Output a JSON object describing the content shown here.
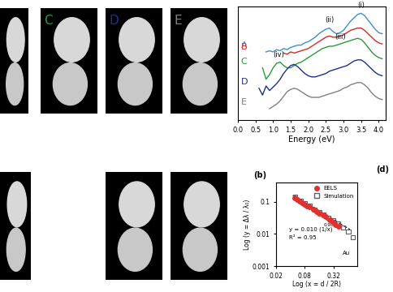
{
  "chart_data": [
    {
      "type": "line",
      "xlabel": "Energy (eV)",
      "x": [
        0.6,
        0.7,
        0.8,
        0.9,
        1.0,
        1.1,
        1.2,
        1.3,
        1.4,
        1.5,
        1.6,
        1.7,
        1.8,
        1.9,
        2.0,
        2.1,
        2.2,
        2.3,
        2.4,
        2.5,
        2.6,
        2.7,
        2.8,
        2.9,
        3.0,
        3.1,
        3.2,
        3.3,
        3.4,
        3.5,
        3.6,
        3.7,
        3.8,
        3.9,
        4.0,
        4.1
      ],
      "series": [
        {
          "name": "A",
          "color": "#3a8fd0",
          "values": [
            null,
            null,
            6.0,
            6.1,
            6.0,
            6.2,
            6.1,
            6.3,
            6.2,
            6.4,
            6.5,
            6.6,
            6.6,
            6.8,
            6.9,
            7.1,
            7.3,
            7.6,
            7.8,
            8.0,
            8.1,
            7.8,
            7.6,
            7.7,
            7.9,
            8.3,
            8.7,
            9.0,
            9.3,
            9.4,
            9.2,
            8.8,
            8.4,
            8.0,
            7.7,
            7.6
          ]
        },
        {
          "name": "B",
          "color": "#d42a2a",
          "values": [
            null,
            null,
            null,
            null,
            null,
            null,
            null,
            5.9,
            5.8,
            6.0,
            5.9,
            6.0,
            6.1,
            6.2,
            6.3,
            6.5,
            6.7,
            6.9,
            7.1,
            7.3,
            7.4,
            7.3,
            7.3,
            7.4,
            7.5,
            7.7,
            7.9,
            8.0,
            8.1,
            8.1,
            7.9,
            7.6,
            7.3,
            7.0,
            6.8,
            6.7
          ]
        },
        {
          "name": "C",
          "color": "#2a9a3a",
          "values": [
            null,
            4.6,
            3.6,
            4.0,
            4.6,
            5.0,
            5.1,
            4.8,
            4.6,
            4.6,
            4.8,
            5.0,
            5.1,
            5.3,
            5.5,
            5.7,
            5.9,
            6.1,
            6.3,
            6.4,
            6.5,
            6.5,
            6.6,
            6.7,
            6.8,
            6.9,
            7.0,
            7.1,
            7.2,
            7.1,
            6.8,
            6.4,
            6.0,
            5.7,
            5.5,
            5.4
          ]
        },
        {
          "name": "D",
          "color": "#1f2f8f",
          "values": [
            2.8,
            2.2,
            3.0,
            2.6,
            2.9,
            3.2,
            3.6,
            4.1,
            4.5,
            4.8,
            4.9,
            4.7,
            4.4,
            4.1,
            3.9,
            3.8,
            3.8,
            3.9,
            4.0,
            4.1,
            4.3,
            4.4,
            4.5,
            4.6,
            4.7,
            4.8,
            5.0,
            5.2,
            5.3,
            5.3,
            5.1,
            4.8,
            4.5,
            4.2,
            4.0,
            3.9
          ]
        },
        {
          "name": "E",
          "color": "#808080",
          "values": [
            null,
            null,
            null,
            1.0,
            1.2,
            1.4,
            1.7,
            2.1,
            2.5,
            2.7,
            2.8,
            2.7,
            2.5,
            2.3,
            2.1,
            2.0,
            2.0,
            2.0,
            2.1,
            2.2,
            2.3,
            2.4,
            2.5,
            2.6,
            2.8,
            2.9,
            3.1,
            3.2,
            3.3,
            3.3,
            3.1,
            2.8,
            2.4,
            2.1,
            1.9,
            1.8
          ]
        }
      ],
      "xlim": [
        0.0,
        4.2
      ],
      "xticks": [
        0.0,
        0.5,
        1.0,
        1.5,
        2.0,
        2.5,
        3.0,
        3.5,
        4.0
      ],
      "ylim": [
        0,
        10
      ],
      "tick_labels": "x",
      "annotations": [
        {
          "text": "(i)",
          "x": 3.5,
          "y": 9.8
        },
        {
          "text": "(ii)",
          "x": 2.6,
          "y": 8.5
        },
        {
          "text": "(iii)",
          "x": 2.9,
          "y": 7.0
        },
        {
          "text": "(iv)",
          "x": 1.15,
          "y": 5.4
        }
      ]
    },
    {
      "type": "scatter",
      "title": "(b)",
      "xlabel": "Log (x = d / 2R)",
      "ylabel": "Log (y = Δλ / λ₀)",
      "log": true,
      "xlim": [
        0.02,
        1.0
      ],
      "ylim": [
        0.001,
        0.4
      ],
      "xticks": [
        0.02,
        0.08,
        0.32
      ],
      "yticks": [
        0.001,
        0.01,
        0.1
      ],
      "legend": "upper right",
      "series": [
        {
          "name": "EELS",
          "color": "#e03030",
          "marker": "circle",
          "x": [
            0.05,
            0.055,
            0.062,
            0.07,
            0.08,
            0.09,
            0.1,
            0.12,
            0.14,
            0.16,
            0.19,
            0.22,
            0.26,
            0.3,
            0.35,
            0.4
          ],
          "values": [
            0.13,
            0.12,
            0.105,
            0.095,
            0.085,
            0.075,
            0.07,
            0.058,
            0.05,
            0.045,
            0.038,
            0.034,
            0.028,
            0.025,
            0.02,
            0.017
          ]
        },
        {
          "name": "Simulation",
          "color": "#606060",
          "marker": "square",
          "x": [
            0.05,
            0.065,
            0.08,
            0.1,
            0.13,
            0.16,
            0.2,
            0.25,
            0.32,
            0.4,
            0.5,
            0.65,
            0.8
          ],
          "values": [
            0.14,
            0.11,
            0.09,
            0.075,
            0.058,
            0.048,
            0.04,
            0.032,
            0.026,
            0.021,
            0.016,
            0.012,
            0.008
          ]
        },
        {
          "type": "line",
          "line_style": "dashed",
          "color": "#000000",
          "x": [
            0.045,
            0.7
          ],
          "values": [
            0.16,
            0.0138
          ]
        }
      ],
      "annotations": [
        {
          "text": "y = 0.010 (1/x)",
          "x": 0.038,
          "y": 0.014
        },
        {
          "text": "0.90",
          "x": 0.2,
          "y": 0.019
        },
        {
          "text": "R² = 0.95",
          "x": 0.038,
          "y": 0.0075
        },
        {
          "text": "Au",
          "x": 0.5,
          "y": 0.0025
        }
      ]
    }
  ],
  "image_panels": {
    "top_row": {
      "labels": [
        null,
        "C",
        "D",
        "E"
      ],
      "colors": [
        null,
        "#2a9a3a",
        "#1f2f8f",
        "#808080"
      ]
    },
    "bottom_row": {
      "labels": [
        null,
        null,
        null
      ],
      "colors": [
        null,
        null,
        null
      ]
    }
  },
  "other_texts": [
    "(d)"
  ]
}
